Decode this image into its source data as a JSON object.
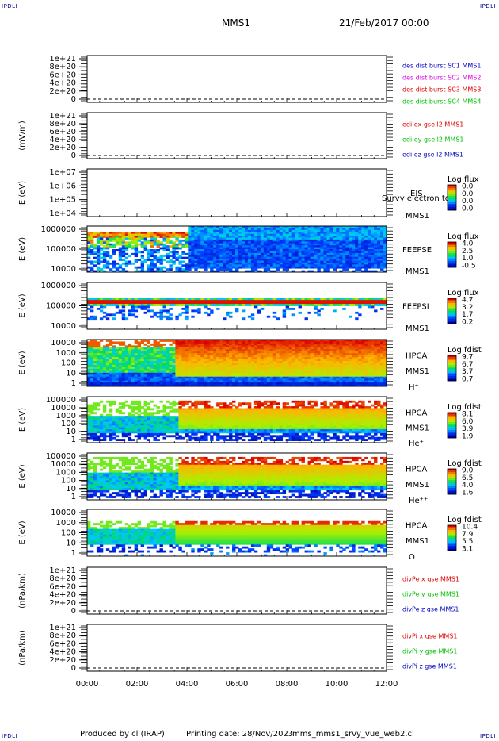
{
  "corners": {
    "tl": "IPDLI",
    "tr": "IPDLI",
    "bl": "IPDLI",
    "br": "IPDLI"
  },
  "header": {
    "spacecraft": "MMS1",
    "date": "21/Feb/2017 00:00"
  },
  "footer": {
    "producer": "Produced by cl (IRAP)",
    "printing": "Printing date: 28/Nov/2023",
    "script": "mms_mms1_srvy_vue_web2.cl"
  },
  "x_ticks": [
    "00:00",
    "02:00",
    "04:00",
    "06:00",
    "08:00",
    "10:00",
    "12:00"
  ],
  "colors": {
    "red": "#e00000",
    "green": "#00c000",
    "blue": "#0000c0",
    "magenta": "#e000e0"
  },
  "chart_data": [
    {
      "type": "line",
      "ylabel": "",
      "yticks": [
        "1e+21",
        "8e+20",
        "6e+20",
        "4e+20",
        "2e+20",
        "0"
      ],
      "legend": [
        {
          "text": "des dist burst SC1 MMS1",
          "color": "#0000c0"
        },
        {
          "text": "des dist burst SC2 MMS2",
          "color": "#e000e0"
        },
        {
          "text": "des dist burst SC3 MMS3",
          "color": "#e00000"
        },
        {
          "text": "des dist burst SC4 MMS4",
          "color": "#00c000"
        }
      ]
    },
    {
      "type": "line",
      "ylabel": "(mV/m)",
      "yticks": [
        "1e+21",
        "8e+20",
        "6e+20",
        "4e+20",
        "2e+20",
        "0"
      ],
      "legend": [
        {
          "text": "edi ex gse l2 MMS1",
          "color": "#e00000"
        },
        {
          "text": "edi ey gse l2 MMS1",
          "color": "#00c000"
        },
        {
          "text": "edi ez gse l2 MMS1",
          "color": "#0000c0"
        }
      ]
    },
    {
      "type": "heatmap",
      "ylabel": "E (eV)",
      "yticks": [
        "1e+07",
        "1e+06",
        "1e+05",
        "1e+04"
      ],
      "labels": [
        "EIS",
        "MMS1"
      ],
      "cbar_title": "Log flux",
      "cbar_ticks": [
        "0.0",
        "0.0",
        "0.0",
        "0.0"
      ],
      "overlay": "Survy electron to"
    },
    {
      "type": "heatmap",
      "ylabel": "E (eV)",
      "yticks": [
        "1000000",
        "100000",
        "10000"
      ],
      "labels": [
        "FEEPSE",
        "MMS1"
      ],
      "cbar_title": "Log flux",
      "cbar_ticks": [
        "4.0",
        "2.5",
        "1.0",
        "-0.5"
      ]
    },
    {
      "type": "heatmap",
      "ylabel": "E (eV)",
      "yticks": [
        "1000000",
        "100000",
        "10000"
      ],
      "labels": [
        "FEEPSI",
        "MMS1"
      ],
      "cbar_title": "Log flux",
      "cbar_ticks": [
        "4.7",
        "3.2",
        "1.7",
        "0.2"
      ]
    },
    {
      "type": "heatmap",
      "ylabel": "E (eV)",
      "yticks": [
        "10000",
        "1000",
        "100",
        "10",
        "1"
      ],
      "labels": [
        "HPCA",
        "MMS1",
        "H⁺"
      ],
      "cbar_title": "Log fdist",
      "cbar_ticks": [
        "9.7",
        "6.7",
        "3.7",
        "0.7"
      ]
    },
    {
      "type": "heatmap",
      "ylabel": "E (eV)",
      "yticks": [
        "100000",
        "10000",
        "1000",
        "100",
        "10",
        "1"
      ],
      "labels": [
        "HPCA",
        "MMS1",
        "He⁺"
      ],
      "cbar_title": "Log fdist",
      "cbar_ticks": [
        "8.1",
        "6.0",
        "3.9",
        "1.9"
      ]
    },
    {
      "type": "heatmap",
      "ylabel": "E (eV)",
      "yticks": [
        "100000",
        "10000",
        "1000",
        "100",
        "10",
        "1"
      ],
      "labels": [
        "HPCA",
        "MMS1",
        "He⁺⁺"
      ],
      "cbar_title": "Log fdist",
      "cbar_ticks": [
        "9.0",
        "6.5",
        "4.0",
        "1.6"
      ]
    },
    {
      "type": "heatmap",
      "ylabel": "E (eV)",
      "yticks": [
        "10000",
        "1000",
        "100",
        "10",
        "1"
      ],
      "labels": [
        "HPCA",
        "MMS1",
        "O⁺"
      ],
      "cbar_title": "Log fdist",
      "cbar_ticks": [
        "10.4",
        "7.9",
        "5.5",
        "3.1"
      ]
    },
    {
      "type": "line",
      "ylabel": "(nPa/km)",
      "yticks": [
        "1e+21",
        "8e+20",
        "6e+20",
        "4e+20",
        "2e+20",
        "0"
      ],
      "legend": [
        {
          "text": "divPe x gse MMS1",
          "color": "#e00000"
        },
        {
          "text": "divPe y gse MMS1",
          "color": "#00c000"
        },
        {
          "text": "divPe z gse MMS1",
          "color": "#0000c0"
        }
      ]
    },
    {
      "type": "line",
      "ylabel": "(nPa/km)",
      "yticks": [
        "1e+21",
        "8e+20",
        "6e+20",
        "4e+20",
        "2e+20",
        "0"
      ],
      "legend": [
        {
          "text": "divPi x gse MMS1",
          "color": "#e00000"
        },
        {
          "text": "divPi y gse MMS1",
          "color": "#00c000"
        },
        {
          "text": "divPi z gse MMS1",
          "color": "#0000c0"
        }
      ]
    }
  ]
}
